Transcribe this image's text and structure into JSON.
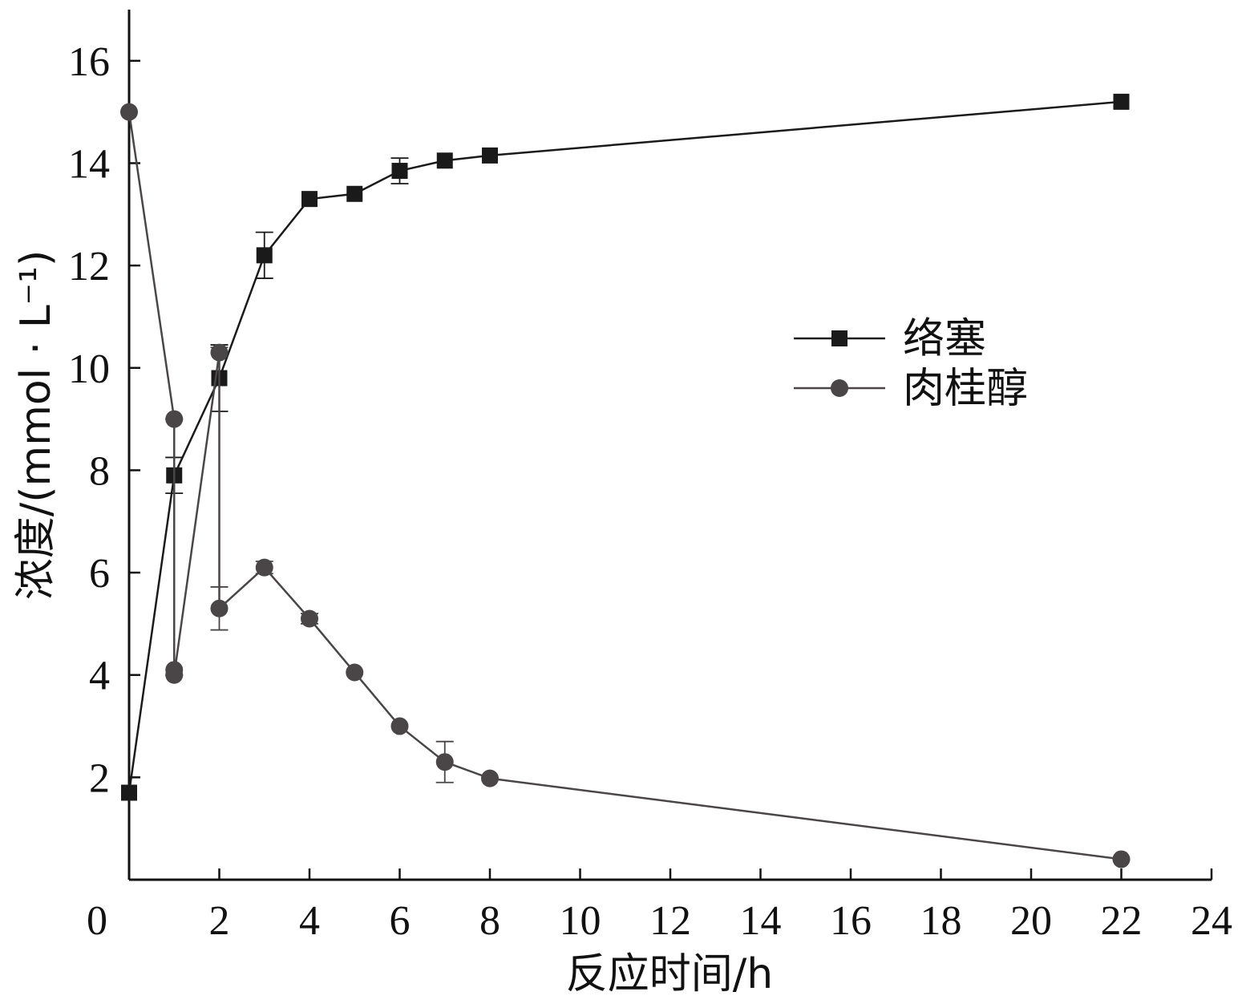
{
  "chart_data": {
    "type": "line",
    "title": "",
    "xlabel": "反应时间/h",
    "ylabel": "浓度/(mmol · L⁻¹)",
    "xlim": [
      0,
      24
    ],
    "ylim": [
      0,
      17
    ],
    "xticks": [
      0,
      2,
      4,
      6,
      8,
      10,
      12,
      14,
      16,
      18,
      20,
      22,
      24
    ],
    "yticks": [
      2,
      4,
      6,
      8,
      10,
      12,
      14,
      16
    ],
    "grid": false,
    "legend_position": "right-middle",
    "series": [
      {
        "name": "络塞",
        "marker": "square",
        "color": "#1a1a1a",
        "points": [
          {
            "x": 0,
            "y": 1.7
          },
          {
            "x": 1,
            "y": 7.9,
            "err": 0.35
          },
          {
            "x": 2,
            "y": 9.8,
            "err": 0.65
          },
          {
            "x": 3,
            "y": 12.2,
            "err": 0.45
          },
          {
            "x": 4,
            "y": 13.3
          },
          {
            "x": 5,
            "y": 13.4
          },
          {
            "x": 6,
            "y": 13.85,
            "err": 0.25
          },
          {
            "x": 7,
            "y": 14.05
          },
          {
            "x": 8,
            "y": 14.15
          },
          {
            "x": 22,
            "y": 15.2
          }
        ]
      },
      {
        "name": "肉桂醇",
        "marker": "circle",
        "color": "#4a4546",
        "points": [
          {
            "x": 0,
            "y": 15.0
          },
          {
            "x": 1,
            "y": 9.0
          },
          {
            "x": 1,
            "y": 4.1
          },
          {
            "x": 1,
            "y": 4.0
          },
          {
            "x": 2,
            "y": 10.3
          },
          {
            "x": 2,
            "y": 5.3,
            "err": 0.42
          },
          {
            "x": 3,
            "y": 6.1,
            "err": 0.12
          },
          {
            "x": 4,
            "y": 5.1,
            "err": 0.1
          },
          {
            "x": 5,
            "y": 4.05
          },
          {
            "x": 6,
            "y": 3.0
          },
          {
            "x": 7,
            "y": 2.3,
            "err": 0.4
          },
          {
            "x": 8,
            "y": 1.98
          },
          {
            "x": 22,
            "y": 0.4
          }
        ]
      }
    ],
    "extra_error_bars": [
      {
        "x": 1,
        "low": 4.0,
        "high": 9.0,
        "series": "肉桂醇"
      },
      {
        "x": 2,
        "low": 5.3,
        "high": 10.4,
        "series": "肉桂醇"
      }
    ]
  }
}
